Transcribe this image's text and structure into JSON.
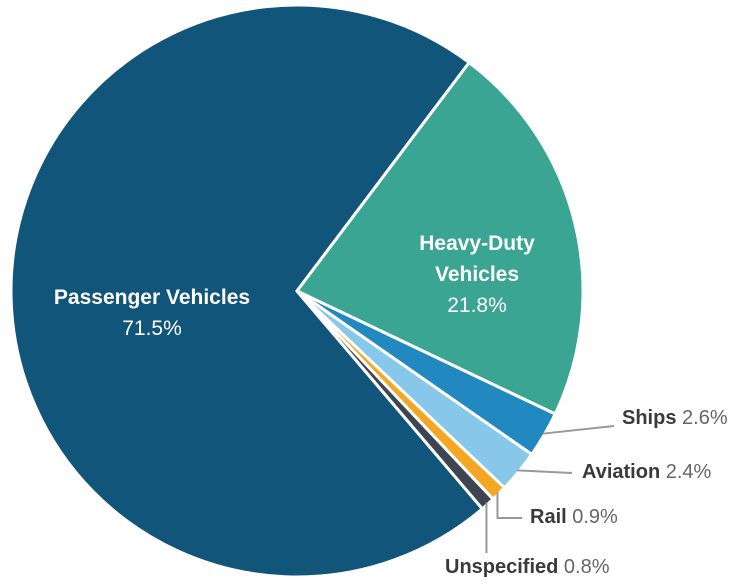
{
  "chart_data": {
    "type": "pie",
    "categories": [
      "Passenger Vehicles",
      "Heavy-Duty Vehicles",
      "Ships",
      "Aviation",
      "Rail",
      "Unspecified"
    ],
    "values": [
      71.5,
      21.8,
      2.6,
      2.4,
      0.9,
      0.8
    ],
    "value_labels": [
      "71.5%",
      "21.8%",
      "2.6%",
      "2.4%",
      "0.9%",
      "0.8%"
    ],
    "colors": [
      "#12557a",
      "#3aa592",
      "#2288c0",
      "#87c8ea",
      "#f5a623",
      "#3d4550"
    ]
  }
}
